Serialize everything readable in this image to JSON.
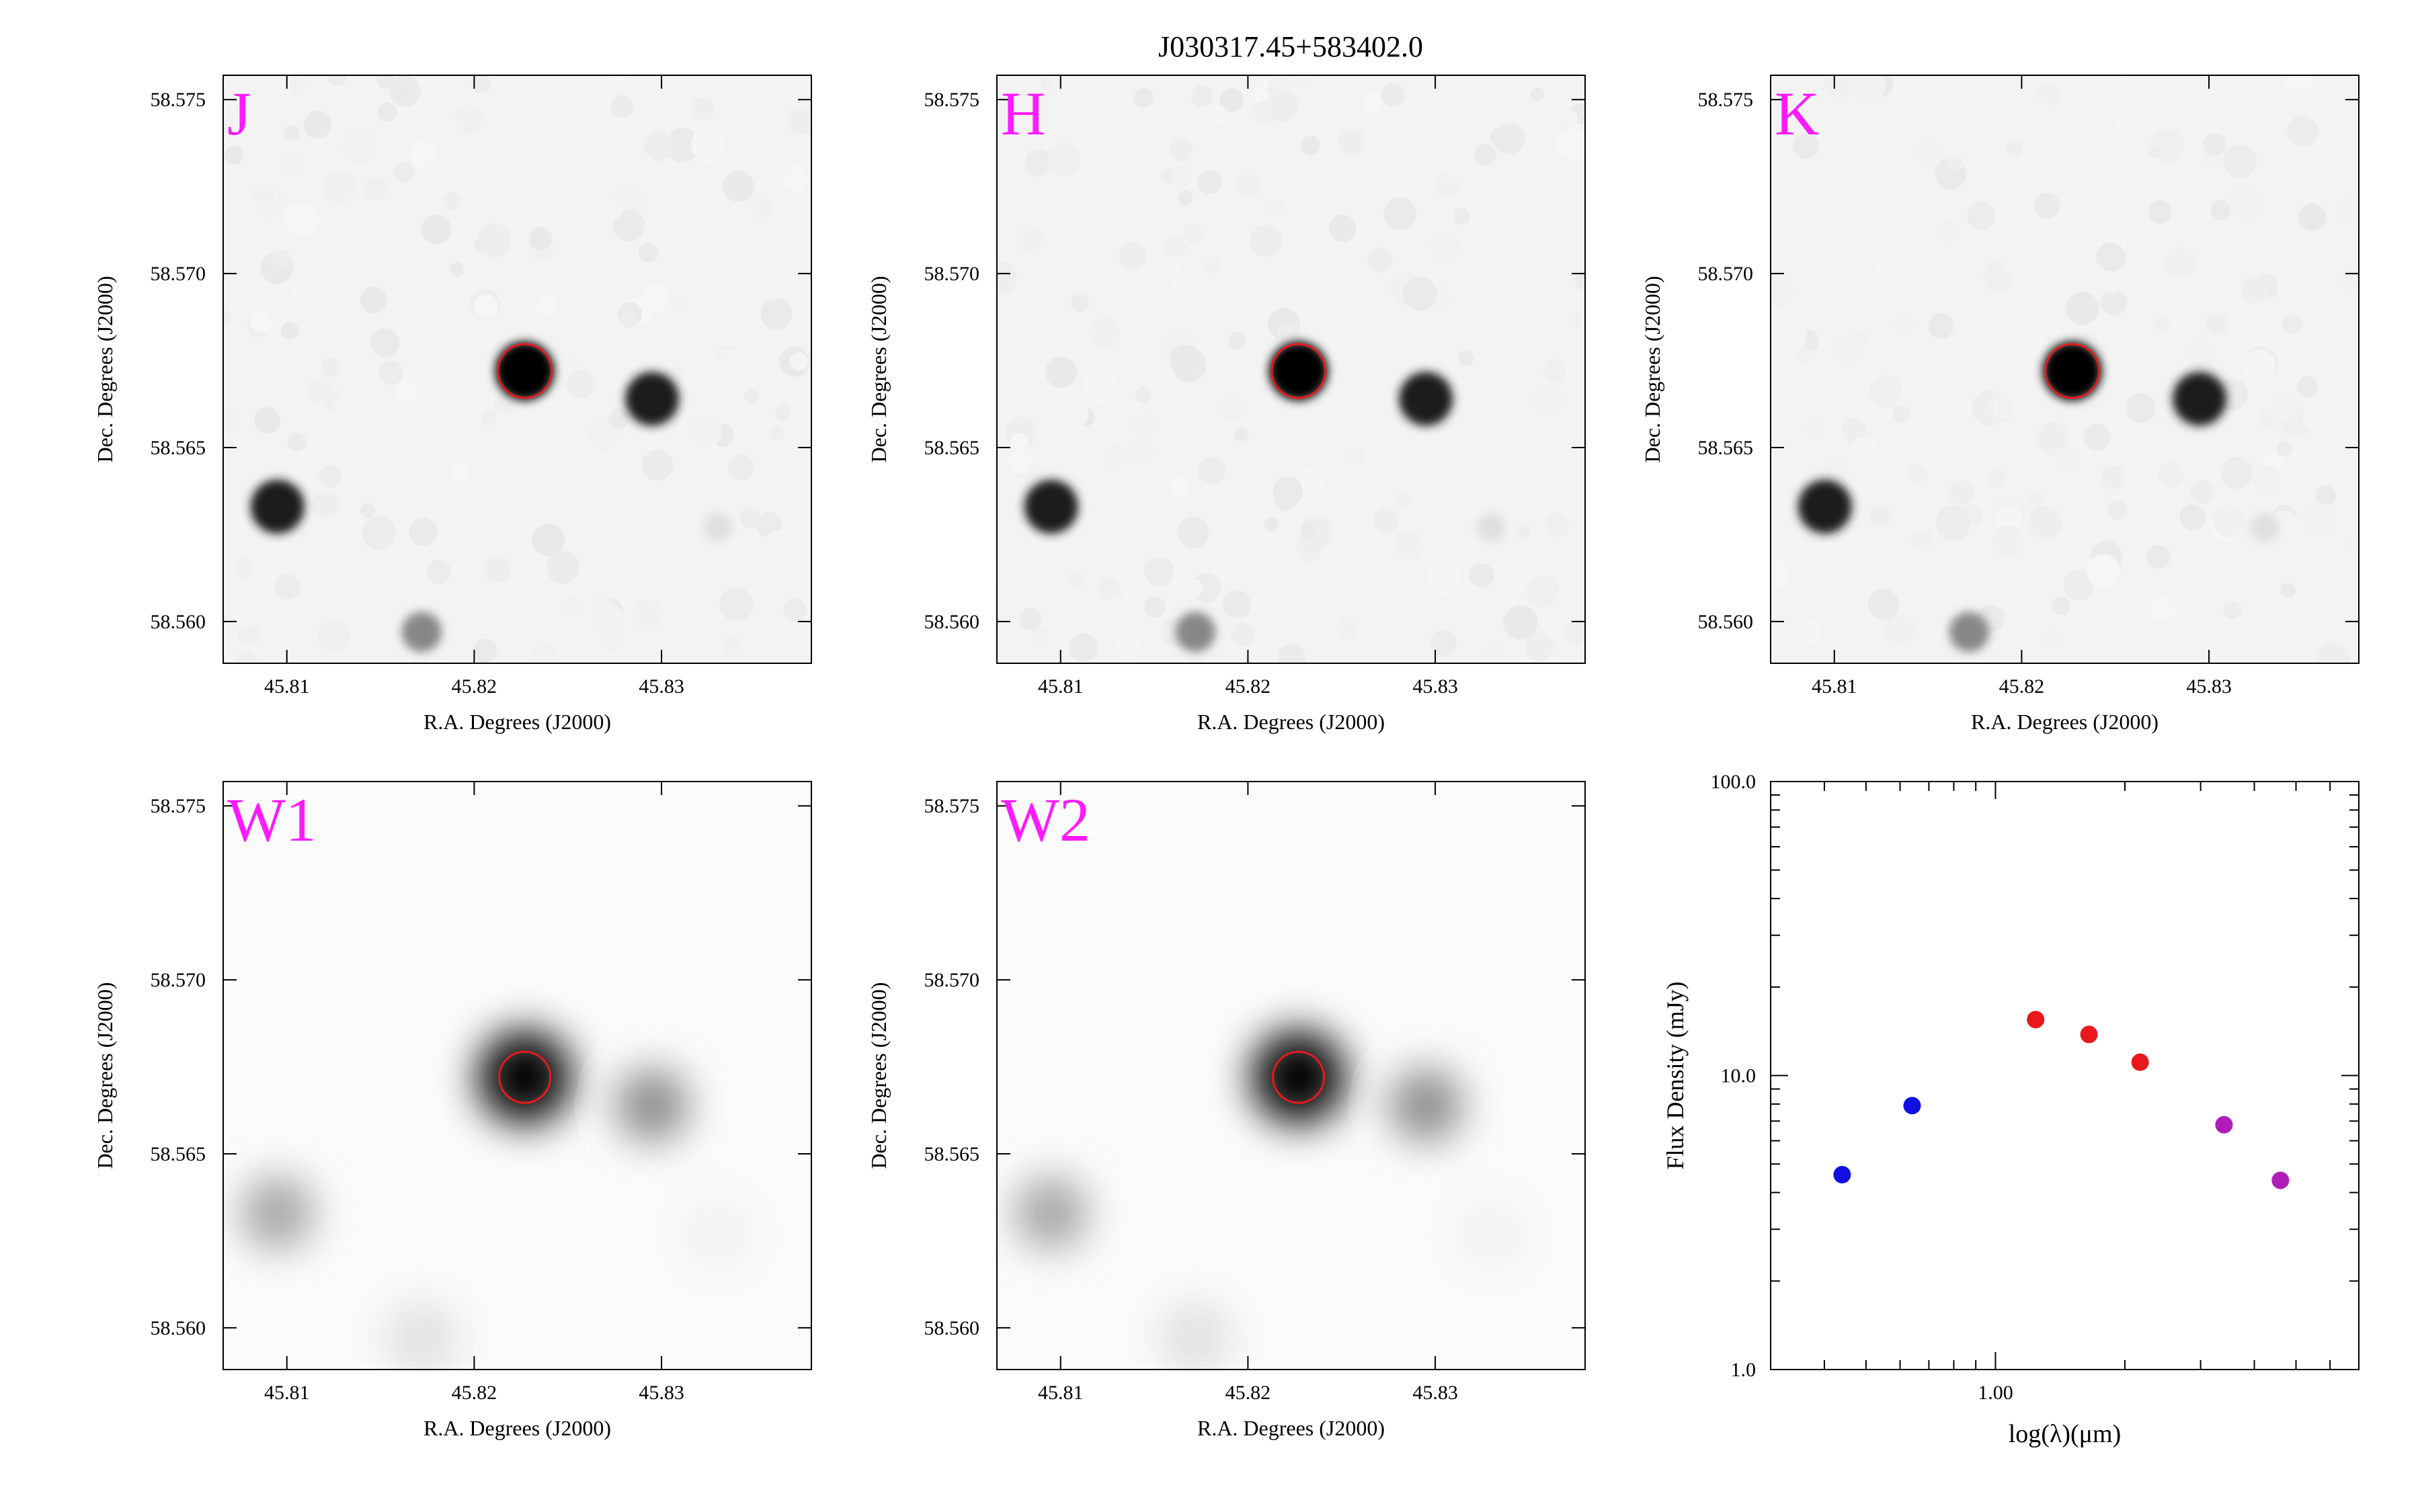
{
  "figure": {
    "title": "J030317.45+583402.0"
  },
  "images": {
    "xlabel": "R.A. Degrees (J2000)",
    "ylabel": "Dec. Degrees (J2000)",
    "ra_range": [
      45.8066,
      45.838
    ],
    "dec_range": [
      58.5588,
      58.5757
    ],
    "ra_ticks": [
      "45.81",
      "45.82",
      "45.83"
    ],
    "ra_tick_values": [
      45.81,
      45.82,
      45.83
    ],
    "dec_ticks": [
      "58.575",
      "58.570",
      "58.565",
      "58.560"
    ],
    "dec_tick_values": [
      58.575,
      58.57,
      58.565,
      58.56
    ],
    "target": {
      "ra": 45.8227,
      "dec": 58.5672
    },
    "marker_color": "#e8191c",
    "panels": [
      {
        "band": "J",
        "style": "2mass"
      },
      {
        "band": "H",
        "style": "2mass"
      },
      {
        "band": "K",
        "style": "2mass"
      },
      {
        "band": "W1",
        "style": "wise"
      },
      {
        "band": "W2",
        "style": "wise"
      }
    ],
    "sources": [
      {
        "ra": 45.8227,
        "dec": 58.5672,
        "level": 1.0
      },
      {
        "ra": 45.8295,
        "dec": 58.5664,
        "level": 0.85
      },
      {
        "ra": 45.8095,
        "dec": 58.5633,
        "level": 0.85
      },
      {
        "ra": 45.8172,
        "dec": 58.5597,
        "level": 0.45
      },
      {
        "ra": 45.833,
        "dec": 58.5627,
        "level": 0.12
      }
    ]
  },
  "chart_data": {
    "type": "scatter",
    "xlabel": "log(λ)(μm)",
    "ylabel": "Flux Density (mJy)",
    "xscale": "log",
    "yscale": "log",
    "xlim": [
      0.3,
      7.0
    ],
    "ylim": [
      1.0,
      100.0
    ],
    "xticklabels": [
      "1.00"
    ],
    "yticklabels": [
      "1.0",
      "10.0",
      "100.0"
    ],
    "series": [
      {
        "color": "#1010e0",
        "x": [
          0.44,
          0.64
        ],
        "y": [
          4.6,
          7.9
        ]
      },
      {
        "color": "#e8191c",
        "x": [
          1.24,
          1.65,
          2.17
        ],
        "y": [
          15.5,
          13.8,
          11.1
        ]
      },
      {
        "color": "#b01cb8",
        "x": [
          3.4,
          4.6
        ],
        "y": [
          6.8,
          4.4
        ]
      }
    ]
  }
}
